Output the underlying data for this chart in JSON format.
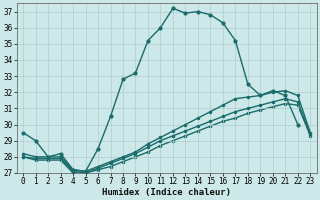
{
  "xlabel": "Humidex (Indice chaleur)",
  "bg_color": "#cde8e8",
  "grid_color": "#aecece",
  "line_color": "#1a6b6b",
  "xlim": [
    -0.5,
    23.5
  ],
  "ylim": [
    27,
    37.5
  ],
  "yticks": [
    27,
    28,
    29,
    30,
    31,
    32,
    33,
    34,
    35,
    36,
    37
  ],
  "xticks": [
    0,
    1,
    2,
    3,
    4,
    5,
    6,
    7,
    8,
    9,
    10,
    11,
    12,
    13,
    14,
    15,
    16,
    17,
    18,
    19,
    20,
    21,
    22,
    23
  ],
  "series": [
    {
      "x": [
        0,
        1,
        2,
        3,
        4,
        5,
        6,
        7,
        8,
        9,
        10,
        11,
        12,
        13,
        14,
        15,
        16,
        17,
        18,
        19,
        20,
        21,
        22
      ],
      "y": [
        29.5,
        29.0,
        28.0,
        28.2,
        27.2,
        27.1,
        28.5,
        30.5,
        32.8,
        33.2,
        35.2,
        36.0,
        37.2,
        36.9,
        37.0,
        36.8,
        36.3,
        35.2,
        32.5,
        31.8,
        32.1,
        31.8,
        30.0
      ]
    },
    {
      "x": [
        0,
        1,
        2,
        3,
        4,
        5,
        6,
        7,
        8,
        9,
        10,
        11,
        12,
        13,
        14,
        15,
        16,
        17,
        18,
        19,
        20,
        21,
        22,
        23
      ],
      "y": [
        28.2,
        28.0,
        28.0,
        28.0,
        27.2,
        27.1,
        27.4,
        27.7,
        28.0,
        28.3,
        28.8,
        29.2,
        29.6,
        30.0,
        30.4,
        30.8,
        31.2,
        31.6,
        31.7,
        31.8,
        32.0,
        32.1,
        31.8,
        29.5
      ]
    },
    {
      "x": [
        0,
        1,
        2,
        3,
        4,
        5,
        6,
        7,
        8,
        9,
        10,
        11,
        12,
        13,
        14,
        15,
        16,
        17,
        18,
        19,
        20,
        21,
        22,
        23
      ],
      "y": [
        28.0,
        27.9,
        27.9,
        27.9,
        27.1,
        27.0,
        27.3,
        27.6,
        27.9,
        28.2,
        28.6,
        29.0,
        29.3,
        29.6,
        29.9,
        30.2,
        30.5,
        30.8,
        31.0,
        31.2,
        31.4,
        31.6,
        31.4,
        29.4
      ]
    },
    {
      "x": [
        0,
        1,
        2,
        3,
        4,
        5,
        6,
        7,
        8,
        9,
        10,
        11,
        12,
        13,
        14,
        15,
        16,
        17,
        18,
        19,
        20,
        21,
        22,
        23
      ],
      "y": [
        28.0,
        27.8,
        27.8,
        27.8,
        27.0,
        27.0,
        27.2,
        27.4,
        27.7,
        28.0,
        28.3,
        28.7,
        29.0,
        29.3,
        29.6,
        29.9,
        30.2,
        30.4,
        30.7,
        30.9,
        31.1,
        31.3,
        31.2,
        29.3
      ]
    }
  ]
}
